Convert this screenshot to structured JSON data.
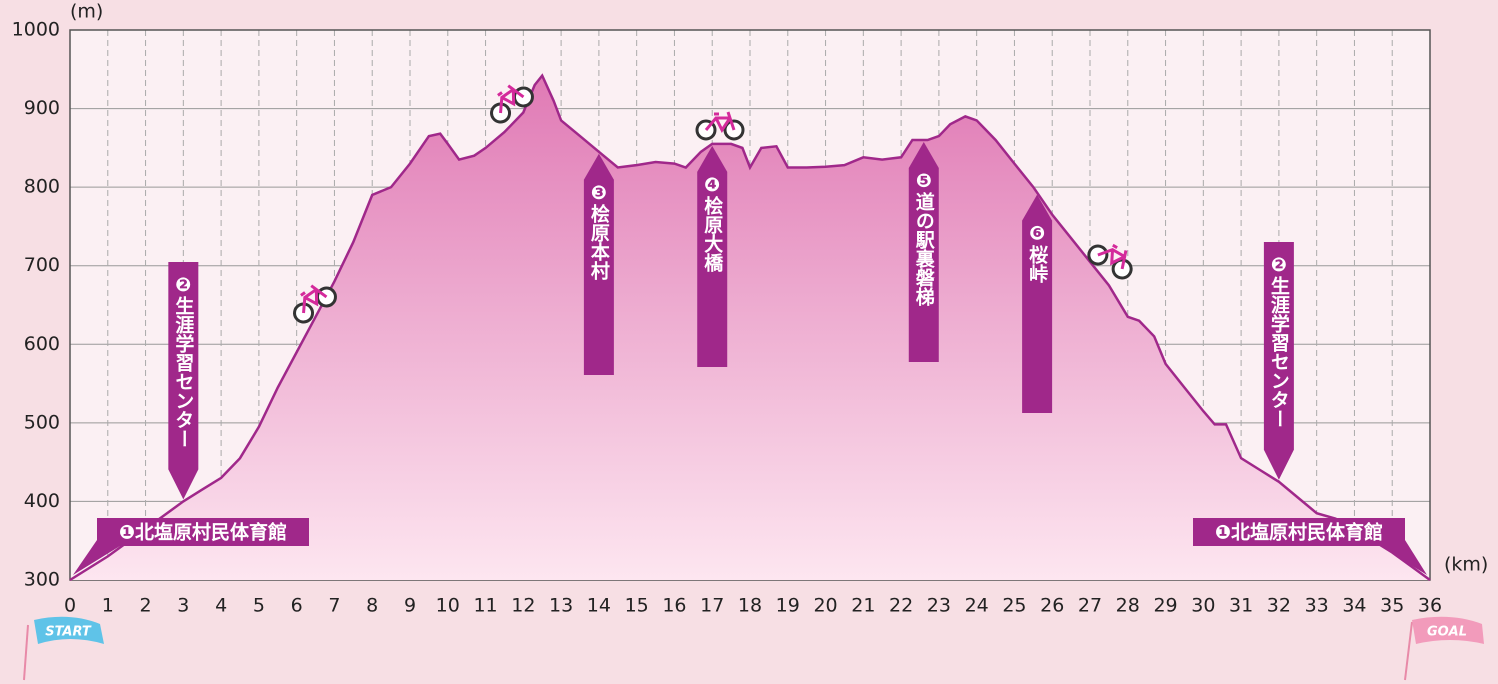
{
  "chart_data": {
    "type": "area",
    "y_unit": "(m)",
    "x_unit": "(km)",
    "color": "#a0288a",
    "x": [
      0,
      1,
      2,
      3,
      3.5,
      4,
      4.5,
      5,
      5.5,
      6,
      6.5,
      7,
      7.5,
      8,
      8.5,
      9,
      9.5,
      9.8,
      10,
      10.3,
      10.7,
      11,
      11.5,
      12,
      12.3,
      12.5,
      12.8,
      13,
      13.5,
      14,
      14.5,
      15,
      15.5,
      16,
      16.3,
      16.7,
      17,
      17.5,
      17.8,
      18,
      18.3,
      18.7,
      19,
      19.5,
      20,
      20.5,
      21,
      21.5,
      22,
      22.3,
      22.7,
      23,
      23.3,
      23.7,
      24,
      24.5,
      25,
      25.5,
      26,
      26.5,
      27,
      27.5,
      28,
      28.3,
      28.7,
      29,
      29.5,
      30,
      30.3,
      30.6,
      31,
      31.5,
      32,
      32.5,
      33,
      33.5,
      34,
      35,
      36
    ],
    "values": [
      300,
      330,
      365,
      400,
      415,
      430,
      455,
      495,
      545,
      590,
      635,
      680,
      730,
      790,
      800,
      830,
      865,
      868,
      855,
      835,
      840,
      850,
      870,
      895,
      930,
      942,
      910,
      885,
      865,
      845,
      825,
      828,
      832,
      830,
      825,
      845,
      855,
      855,
      850,
      825,
      850,
      852,
      825,
      825,
      826,
      828,
      838,
      835,
      838,
      860,
      860,
      865,
      880,
      890,
      885,
      860,
      830,
      800,
      765,
      735,
      705,
      675,
      635,
      630,
      610,
      575,
      545,
      515,
      498,
      498,
      455,
      440,
      425,
      405,
      385,
      378,
      365,
      335,
      300
    ],
    "xlim": [
      0,
      36
    ],
    "xticks": [
      0,
      1,
      2,
      3,
      4,
      5,
      6,
      7,
      8,
      9,
      10,
      11,
      12,
      13,
      14,
      15,
      16,
      17,
      18,
      19,
      20,
      21,
      22,
      23,
      24,
      25,
      26,
      27,
      28,
      29,
      30,
      31,
      32,
      33,
      34,
      35,
      36
    ],
    "ylim": [
      300,
      1000
    ],
    "yticks": [
      300,
      400,
      500,
      600,
      700,
      800,
      900,
      1000
    ],
    "grid": true,
    "annotations": [
      {
        "text": "❶北塩原村民体育館",
        "x": 0
      },
      {
        "text": "❷生涯学習センター",
        "x": 3
      },
      {
        "text": "❸桧原本村",
        "x": 14
      },
      {
        "text": "❹桧原大橋",
        "x": 17
      },
      {
        "text": "❺道の駅裏磐梯",
        "x": 22.6
      },
      {
        "text": "❻桜峠",
        "x": 25.6
      },
      {
        "text": "❷生涯学習センター",
        "x": 32
      },
      {
        "text": "❶北塩原村民体育館",
        "x": 36
      }
    ],
    "start_label": "START",
    "goal_label": "GOAL"
  }
}
